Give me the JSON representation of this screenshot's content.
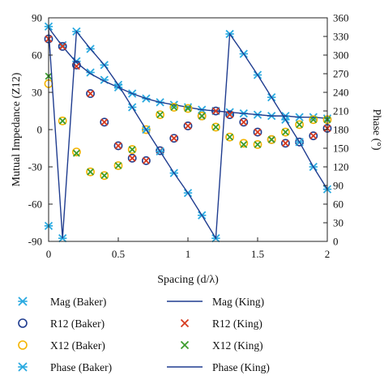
{
  "chart_data": {
    "type": "line",
    "title": "",
    "xlabel": "Spacing (d/λ)",
    "ylabel": "Mutual Impedance (Z12)",
    "y2label": "Phase (°)",
    "xlim": [
      0,
      2
    ],
    "ylim": [
      -90,
      90
    ],
    "y2lim": [
      0,
      360
    ],
    "xticks": [
      "0",
      "0.5",
      "1",
      "1.5",
      "2"
    ],
    "xtick_values": [
      0,
      0.5,
      1,
      1.5,
      2
    ],
    "yticks": [
      "90",
      "60",
      "30",
      "0",
      "-30",
      "-60",
      "-90"
    ],
    "ytick_values": [
      90,
      60,
      30,
      0,
      -30,
      -60,
      -90
    ],
    "y2ticks": [
      "360",
      "330",
      "300",
      "270",
      "240",
      "210",
      "180",
      "150",
      "120",
      "90",
      "60",
      "30",
      "0"
    ],
    "y2tick_values": [
      360,
      330,
      300,
      270,
      240,
      210,
      180,
      150,
      120,
      90,
      60,
      30,
      0
    ],
    "grid": false,
    "legend_position": "bottom",
    "colors": {
      "light_blue": "#29a9e0",
      "dark_blue": "#1f3c8f",
      "orange": "#f5b400",
      "red": "#d63a1e",
      "green": "#3c9c2e",
      "brown": "#8b3a2e"
    },
    "legend": [
      {
        "label": "Mag (Baker)",
        "kind": "marker-x",
        "color": "#29a9e0"
      },
      {
        "label": "Mag (King)",
        "kind": "line",
        "color": "#1f3c8f"
      },
      {
        "label": "R12 (Baker)",
        "kind": "marker-o",
        "color": "#1f3c8f"
      },
      {
        "label": "R12 (King)",
        "kind": "marker-x",
        "color": "#d63a1e"
      },
      {
        "label": "X12 (Baker)",
        "kind": "marker-o",
        "color": "#f5b400"
      },
      {
        "label": "X12 (King)",
        "kind": "marker-x",
        "color": "#3c9c2e"
      },
      {
        "label": "Phase (Baker)",
        "kind": "marker-x",
        "color": "#29a9e0"
      },
      {
        "label": "Phase (King)",
        "kind": "line",
        "color": "#1f3c8f"
      }
    ],
    "series": [
      {
        "name": "Mag (Baker)",
        "axis": "left",
        "style": "x",
        "color": "#29a9e0",
        "x": [
          0,
          0.1,
          0.2,
          0.3,
          0.4,
          0.5,
          0.6,
          0.7,
          0.8,
          0.9,
          1.0,
          1.1,
          1.2,
          1.3,
          1.4,
          1.5,
          1.6,
          1.7,
          1.8,
          1.9,
          2.0
        ],
        "y": [
          83,
          68,
          55,
          46,
          40,
          34,
          29,
          25,
          22,
          20,
          18,
          16,
          15,
          14,
          13,
          12,
          11,
          11,
          10,
          10,
          9
        ]
      },
      {
        "name": "Mag (King)",
        "axis": "left",
        "style": "line",
        "color": "#1f3c8f",
        "x": [
          0,
          0.1,
          0.2,
          0.3,
          0.4,
          0.5,
          0.6,
          0.7,
          0.8,
          0.9,
          1.0,
          1.1,
          1.2,
          1.3,
          1.4,
          1.5,
          1.6,
          1.7,
          1.8,
          1.9,
          2.0
        ],
        "y": [
          82,
          67,
          54,
          45,
          39,
          34,
          29,
          25,
          22,
          20,
          18,
          16,
          15,
          14,
          13,
          12,
          11,
          11,
          10,
          10,
          9
        ]
      },
      {
        "name": "R12 (Baker)",
        "axis": "left",
        "style": "o",
        "color": "#1f3c8f",
        "x": [
          0,
          0.1,
          0.2,
          0.3,
          0.4,
          0.5,
          0.6,
          0.7,
          0.8,
          0.9,
          1.0,
          1.1,
          1.2,
          1.3,
          1.4,
          1.5,
          1.6,
          1.7,
          1.8,
          1.9,
          2.0
        ],
        "y": [
          73,
          67,
          52,
          29,
          6,
          -13,
          -23,
          -25,
          -17,
          -7,
          3,
          11,
          15,
          12,
          6,
          -2,
          -8,
          -11,
          -10,
          -5,
          1
        ]
      },
      {
        "name": "R12 (King)",
        "axis": "left",
        "style": "x",
        "color": "#d63a1e",
        "x": [
          0,
          0.1,
          0.2,
          0.3,
          0.4,
          0.5,
          0.6,
          0.7,
          0.8,
          0.9,
          1.0,
          1.1,
          1.2,
          1.3,
          1.4,
          1.5,
          1.6,
          1.7,
          1.8,
          1.9,
          2.0
        ],
        "y": [
          73,
          67,
          51,
          29,
          6,
          -13,
          -23,
          -25,
          -17,
          -7,
          3,
          11,
          15,
          12,
          6,
          -2,
          -8,
          -11,
          -10,
          -5,
          1
        ]
      },
      {
        "name": "X12 (Baker)",
        "axis": "left",
        "style": "o",
        "color": "#f5b400",
        "x": [
          0,
          0.1,
          0.2,
          0.3,
          0.4,
          0.5,
          0.6,
          0.7,
          0.8,
          0.9,
          1.0,
          1.1,
          1.2,
          1.3,
          1.4,
          1.5,
          1.6,
          1.7,
          1.8,
          1.9,
          2.0
        ],
        "y": [
          37,
          7,
          -18,
          -34,
          -37,
          -29,
          -16,
          0,
          12,
          18,
          17,
          11,
          2,
          -6,
          -11,
          -12,
          -8,
          -2,
          4,
          8,
          8
        ]
      },
      {
        "name": "X12 (King)",
        "axis": "left",
        "style": "x",
        "color": "#3c9c2e",
        "x": [
          0,
          0.1,
          0.2,
          0.3,
          0.4,
          0.5,
          0.6,
          0.7,
          0.8,
          0.9,
          1.0,
          1.1,
          1.2,
          1.3,
          1.4,
          1.5,
          1.6,
          1.7,
          1.8,
          1.9,
          2.0
        ],
        "y": [
          43,
          7,
          -19,
          -34,
          -37,
          -29,
          -16,
          0,
          12,
          18,
          17,
          11,
          2,
          -6,
          -12,
          -12,
          -8,
          -2,
          4,
          8,
          8
        ]
      },
      {
        "name": "Phase (Baker)",
        "axis": "right",
        "style": "x",
        "color": "#29a9e0",
        "x": [
          0,
          0.1,
          0.2,
          0.3,
          0.4,
          0.5,
          0.6,
          0.7,
          0.8,
          0.9,
          1.0,
          1.1,
          1.2,
          1.3,
          1.4,
          1.5,
          1.6,
          1.7,
          1.8,
          1.9,
          2.0
        ],
        "y": [
          25,
          5,
          338,
          310,
          284,
          252,
          216,
          180,
          145,
          110,
          78,
          42,
          5,
          334,
          302,
          268,
          232,
          196,
          160,
          120,
          84
        ]
      },
      {
        "name": "Phase (King)",
        "axis": "right",
        "style": "line",
        "color": "#1f3c8f",
        "x": [
          0,
          0.1,
          0.2,
          0.3,
          0.4,
          0.5,
          0.6,
          0.7,
          0.8,
          0.9,
          1.0,
          1.1,
          1.2,
          1.3,
          1.4,
          1.5,
          1.6,
          1.7,
          1.8,
          1.9,
          2.0
        ],
        "y": [
          340,
          5,
          338,
          310,
          284,
          252,
          216,
          180,
          145,
          110,
          78,
          42,
          5,
          334,
          302,
          268,
          232,
          196,
          160,
          120,
          84
        ]
      }
    ]
  }
}
